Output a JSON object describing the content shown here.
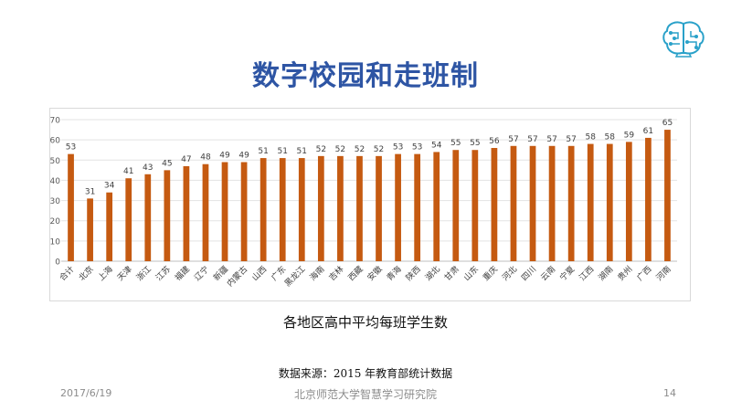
{
  "slide": {
    "title": "数字校园和走班制",
    "caption": "各地区高中平均每班学生数",
    "source": "数据来源：2015 年教育部统计数据"
  },
  "footer": {
    "date": "2017/6/19",
    "organization": "北京师范大学智慧学习研究院",
    "page_number": "14"
  },
  "logo": {
    "icon": "brain-circuit-icon",
    "color": "#2aa1c9"
  },
  "chart_data": {
    "type": "bar",
    "title": "",
    "xlabel": "",
    "ylabel": "",
    "ylim": [
      0,
      70
    ],
    "yticks": [
      0,
      10,
      20,
      30,
      40,
      50,
      60,
      70
    ],
    "grid": true,
    "legend": "none",
    "bar_color": "#c55a11",
    "categories": [
      "合计",
      "北京",
      "上海",
      "天津",
      "浙江",
      "江苏",
      "福建",
      "辽宁",
      "新疆",
      "内蒙古",
      "山西",
      "广东",
      "黑龙江",
      "海南",
      "吉林",
      "西藏",
      "安徽",
      "青海",
      "陕西",
      "湖北",
      "甘肃",
      "山东",
      "重庆",
      "河北",
      "四川",
      "云南",
      "宁夏",
      "江西",
      "湖南",
      "贵州",
      "广西",
      "河南"
    ],
    "values": [
      53,
      31,
      34,
      41,
      43,
      45,
      47,
      48,
      49,
      49,
      51,
      51,
      51,
      52,
      52,
      52,
      52,
      53,
      53,
      54,
      55,
      55,
      56,
      57,
      57,
      57,
      57,
      58,
      58,
      59,
      61,
      65
    ]
  }
}
